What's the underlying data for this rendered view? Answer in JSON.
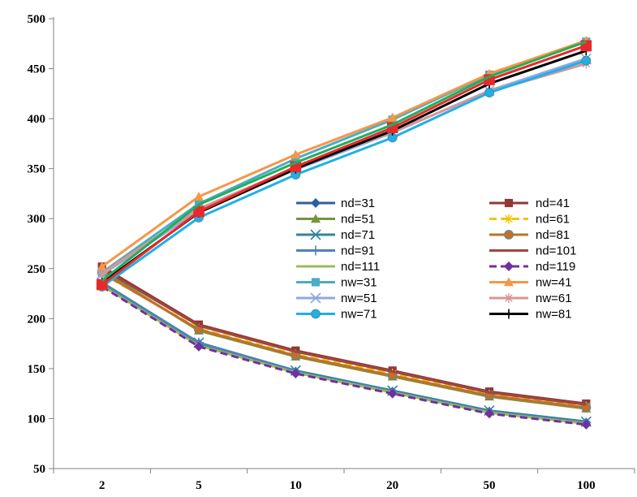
{
  "chart_data": {
    "type": "line",
    "title": "",
    "xlabel": "",
    "ylabel": "",
    "categories": [
      "2",
      "5",
      "10",
      "20",
      "50",
      "100"
    ],
    "yticks": [
      "50",
      "100",
      "150",
      "200",
      "250",
      "300",
      "350",
      "400",
      "450",
      "500"
    ],
    "ylim": [
      50,
      500
    ],
    "grid": false,
    "legend_position": "center-right",
    "series": [
      {
        "name": "nd=31",
        "color": "#2F5E9E",
        "marker": "diamond",
        "dash": false,
        "values": [
          234,
          175,
          147,
          127,
          107,
          96
        ]
      },
      {
        "name": "nd=41",
        "color": "#943634",
        "marker": "square",
        "dash": false,
        "values": [
          252,
          194,
          168,
          148,
          127,
          115
        ]
      },
      {
        "name": "nd=51",
        "color": "#77933C",
        "marker": "triangle",
        "dash": false,
        "values": [
          248,
          188,
          162,
          142,
          122,
          110
        ]
      },
      {
        "name": "nd=61",
        "color": "#F2C500",
        "marker": "star",
        "dash": true,
        "values": [
          245,
          190,
          164,
          145,
          124,
          112
        ]
      },
      {
        "name": "nd=71",
        "color": "#31859C",
        "marker": "x",
        "dash": false,
        "values": [
          236,
          176,
          148,
          128,
          108,
          97
        ]
      },
      {
        "name": "nd=81",
        "color": "#C0702B",
        "marker": "circle",
        "dash": false,
        "values": [
          246,
          189,
          163,
          143,
          123,
          111
        ]
      },
      {
        "name": "nd=91",
        "color": "#4F81BD",
        "marker": "plus",
        "dash": false,
        "values": [
          235,
          176,
          147,
          127,
          107,
          96
        ]
      },
      {
        "name": "nd=101",
        "color": "#A0463E",
        "marker": "none",
        "dash": false,
        "values": [
          250,
          193,
          167,
          147,
          126,
          114
        ]
      },
      {
        "name": "nd=111",
        "color": "#9BBB59",
        "marker": "none",
        "dash": false,
        "values": [
          233,
          173,
          146,
          126,
          106,
          95
        ]
      },
      {
        "name": "nd=119",
        "color": "#7030A0",
        "marker": "diamond",
        "dash": true,
        "values": [
          232,
          172,
          145,
          125,
          105,
          94
        ]
      },
      {
        "name": "nw=31",
        "color": "#4BACC6",
        "marker": "square",
        "dash": false,
        "values": [
          246,
          315,
          360,
          399,
          444,
          477
        ]
      },
      {
        "name": "nw=41",
        "color": "#F79646",
        "marker": "triangle",
        "dash": false,
        "values": [
          252,
          322,
          364,
          401,
          445,
          478
        ]
      },
      {
        "name": "nw=51",
        "color": "#8EA9DB",
        "marker": "x",
        "dash": false,
        "values": [
          244,
          308,
          349,
          386,
          428,
          460
        ]
      },
      {
        "name": "nw=61",
        "color": "#D99694",
        "marker": "star",
        "dash": false,
        "values": [
          245,
          310,
          351,
          387,
          427,
          455
        ]
      },
      {
        "name": "nw=71",
        "color": "#1FB0E8",
        "marker": "circle",
        "dash": false,
        "values": [
          232,
          301,
          344,
          381,
          426,
          458
        ]
      },
      {
        "name": "nw=81",
        "color": "#000000",
        "marker": "plus",
        "dash": false,
        "values": [
          236,
          306,
          350,
          388,
          435,
          468
        ]
      },
      {
        "name": "",
        "color": "#E8292B",
        "marker": "square",
        "dash": false,
        "values": [
          234,
          307,
          352,
          391,
          439,
          473
        ]
      },
      {
        "name": "",
        "color": "#1FAF5B",
        "marker": "none",
        "dash": false,
        "values": [
          238,
          314,
          356,
          394,
          442,
          477
        ]
      }
    ]
  }
}
